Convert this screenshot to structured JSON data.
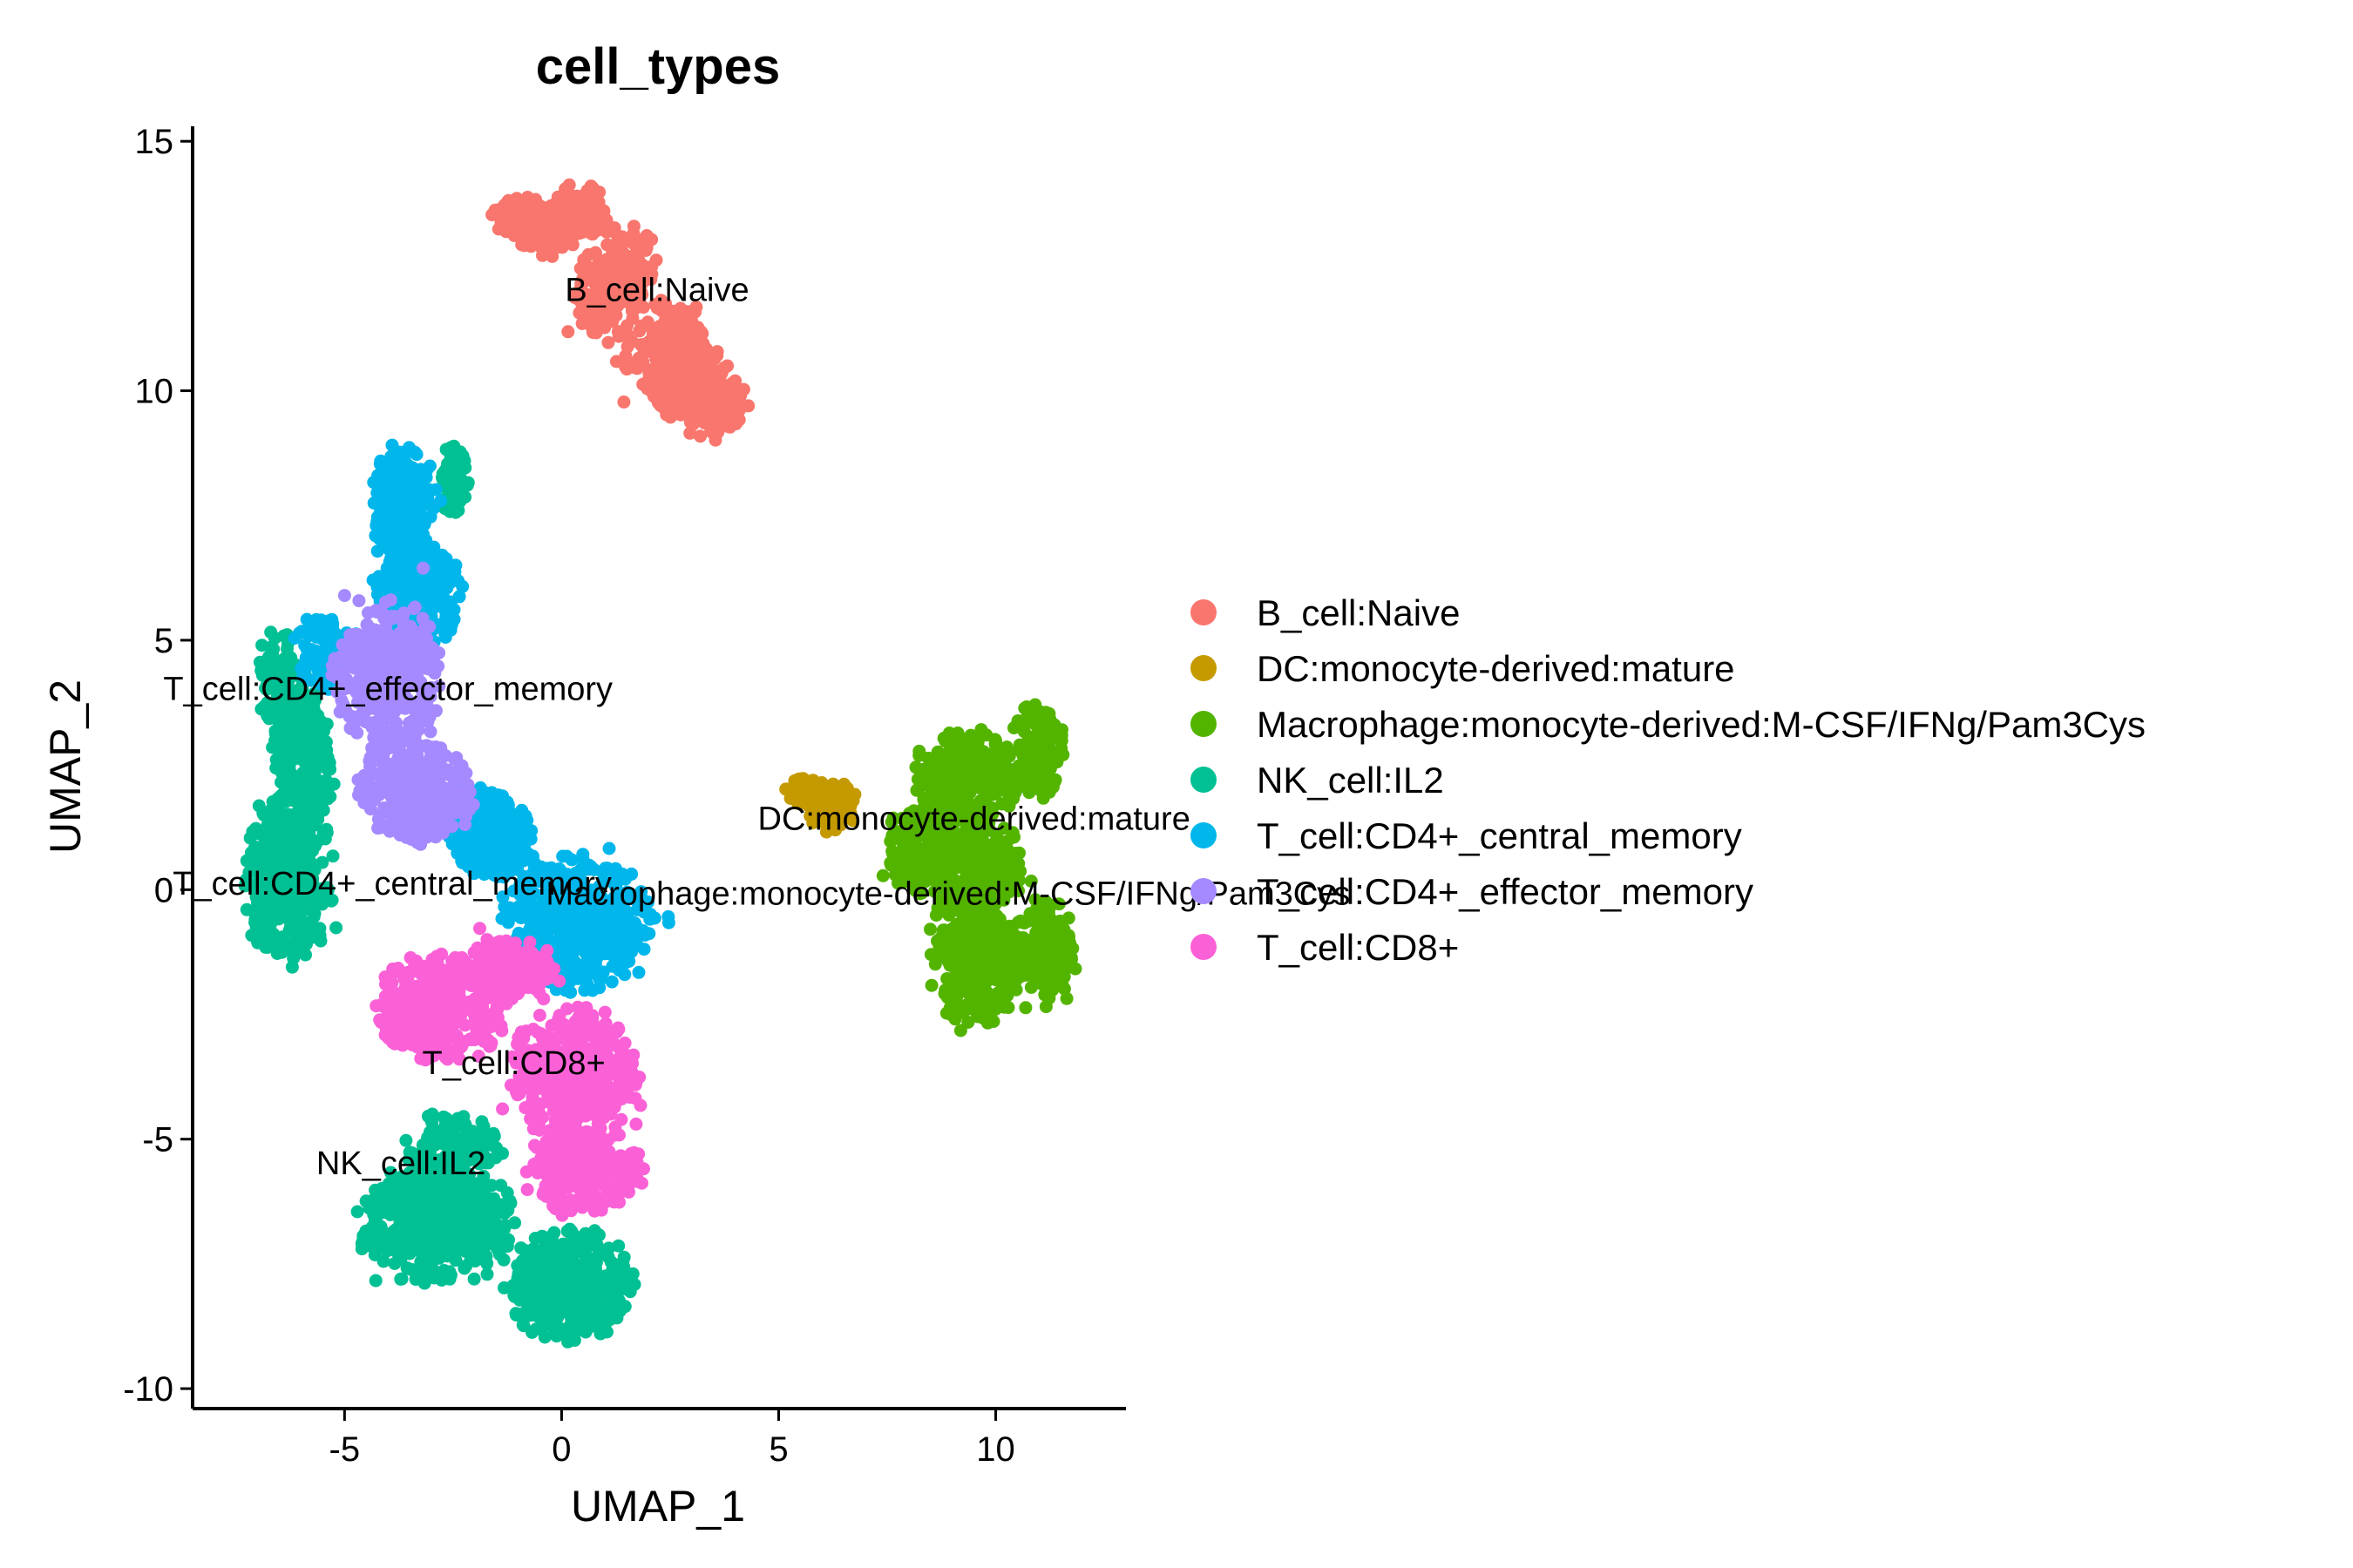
{
  "chart_data": {
    "type": "scatter",
    "title": "cell_types",
    "xlabel": "UMAP_1",
    "ylabel": "UMAP_2",
    "xlim": [
      -8.5,
      13
    ],
    "ylim": [
      -10.4,
      15.3
    ],
    "xticks": [
      -5,
      0,
      5,
      10
    ],
    "yticks": [
      -10,
      -5,
      0,
      5,
      10,
      15
    ],
    "xtick_labels": [
      "-5",
      "0",
      "5",
      "10"
    ],
    "ytick_labels": [
      "-10",
      "-5",
      "0",
      "5",
      "10",
      "15"
    ],
    "grid": false,
    "legend_position": "right",
    "series": [
      {
        "name": "B_cell:Naive",
        "color": "#F8766D",
        "label": "B_cell:Naive",
        "label_at": [
          2.2,
          11.8
        ],
        "regions": [
          [
            -0.6,
            13.3,
            0.9,
            0.45,
            0.95,
            -20
          ],
          [
            1.2,
            12.2,
            0.7,
            1.1,
            0.9,
            -35
          ],
          [
            2.5,
            10.7,
            1.0,
            0.9,
            0.9,
            -40
          ],
          [
            3.3,
            9.9,
            0.9,
            0.75,
            0.9,
            -20
          ],
          [
            0.4,
            13.6,
            0.6,
            0.5,
            0.9,
            0
          ]
        ]
      },
      {
        "name": "DC:monocyte-derived:mature",
        "color": "#C49A00",
        "label": "DC:monocyte-derived:mature",
        "label_at": [
          9.5,
          1.2
        ],
        "regions": [
          [
            6.2,
            1.7,
            0.55,
            0.45,
            0.95,
            0
          ],
          [
            5.6,
            2.0,
            0.3,
            0.25,
            0.9,
            0
          ]
        ]
      },
      {
        "name": "Macrophage:monocyte-derived:M-CSF/IFNg/Pam3Cys",
        "color": "#53B400",
        "label": "Macrophage:monocyte-derived:M-CSF/IFNg/Pam3Cys",
        "label_at": [
          8.9,
          -0.3
        ],
        "regions": [
          [
            9.3,
            2.2,
            1.1,
            0.9,
            0.95,
            0
          ],
          [
            11.0,
            2.8,
            0.5,
            0.9,
            0.9,
            0
          ],
          [
            8.3,
            0.8,
            0.7,
            0.9,
            0.9,
            0
          ],
          [
            9.6,
            -1.2,
            1.0,
            1.4,
            0.95,
            0
          ],
          [
            11.2,
            -1.2,
            0.5,
            1.0,
            0.85,
            0
          ],
          [
            9.6,
            0.5,
            1.0,
            0.8,
            0.85,
            0
          ]
        ]
      },
      {
        "name": "NK_cell:IL2",
        "color": "#00C094",
        "label": "NK_cell:IL2",
        "label_at": [
          -3.7,
          -5.7
        ],
        "regions": [
          [
            -6.1,
            3.2,
            0.6,
            1.8,
            0.95,
            15
          ],
          [
            -6.3,
            0.3,
            0.9,
            1.6,
            0.95,
            0
          ],
          [
            -2.9,
            -6.7,
            1.6,
            1.1,
            0.95,
            0
          ],
          [
            0.2,
            -7.9,
            1.3,
            1.0,
            0.95,
            0
          ],
          [
            -2.5,
            -5.2,
            1.0,
            0.6,
            0.8,
            0
          ],
          [
            -2.5,
            8.2,
            0.3,
            0.6,
            0.9,
            0
          ]
        ]
      },
      {
        "name": "T_cell:CD4+_central_memory",
        "color": "#00B6EB",
        "label": "T_cell:CD4+_central_memory",
        "label_at": [
          -3.9,
          -0.1
        ],
        "regions": [
          [
            -3.6,
            7.6,
            0.7,
            1.2,
            0.95,
            0
          ],
          [
            -3.3,
            5.9,
            0.9,
            0.9,
            0.9,
            0
          ],
          [
            0.4,
            -0.7,
            1.5,
            1.2,
            0.95,
            0
          ],
          [
            -1.6,
            1.1,
            1.0,
            0.8,
            0.9,
            -30
          ],
          [
            -5.5,
            4.8,
            0.6,
            0.7,
            0.85,
            0
          ]
        ]
      },
      {
        "name": "T_cell:CD4+_effector_memory",
        "color": "#A58AFF",
        "label": "T_cell:CD4+_effector_memory",
        "label_at": [
          -4.0,
          3.8
        ],
        "regions": [
          [
            -4.0,
            4.3,
            1.1,
            1.3,
            0.95,
            0
          ],
          [
            -3.4,
            2.0,
            1.2,
            0.9,
            0.95,
            -15
          ]
        ]
      },
      {
        "name": "T_cell:CD8+",
        "color": "#FB61D7",
        "label": "T_cell:CD8+",
        "label_at": [
          -1.1,
          -3.7
        ],
        "regions": [
          [
            -2.8,
            -2.4,
            1.3,
            1.0,
            0.95,
            0
          ],
          [
            0.3,
            -3.7,
            1.3,
            1.2,
            0.95,
            0
          ],
          [
            0.5,
            -5.6,
            1.2,
            0.8,
            0.9,
            0
          ],
          [
            -1.2,
            -1.6,
            0.9,
            0.6,
            0.85,
            0
          ]
        ]
      }
    ]
  }
}
